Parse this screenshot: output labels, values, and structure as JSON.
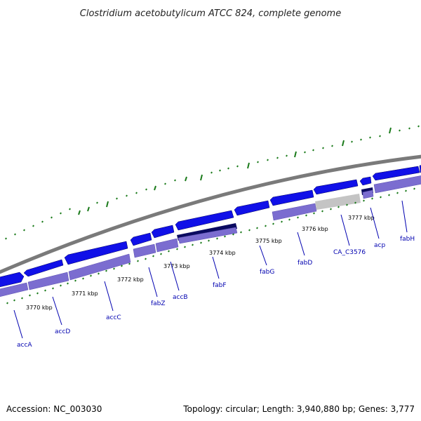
{
  "title": "Clostridium acetobutylicum ATCC 824, complete genome",
  "accession": "Accession: NC_003030",
  "summary": "Topology: circular; Length: 3,940,880 bp; Genes: 3,777",
  "colors": {
    "backbone": "#808080",
    "gene_forward": "#1010e8",
    "gene_selected": "#0a0a60",
    "gene_grey": "#c0c0c0",
    "gene_lane": "#7b6dd0",
    "gc_ticks": "#1a7a1a",
    "label": "#0000b0"
  },
  "scale_labels": [
    "3770 kbp",
    "3771 kbp",
    "3772 kbp",
    "3773 kbp",
    "3774 kbp",
    "3775 kbp",
    "3776 kbp",
    "3777 kbp"
  ],
  "gene_labels": [
    "accA",
    "accD",
    "accC",
    "fabZ",
    "accB",
    "fabF",
    "fabG",
    "fabD",
    "CA_C3576",
    "acp",
    "fabH"
  ]
}
